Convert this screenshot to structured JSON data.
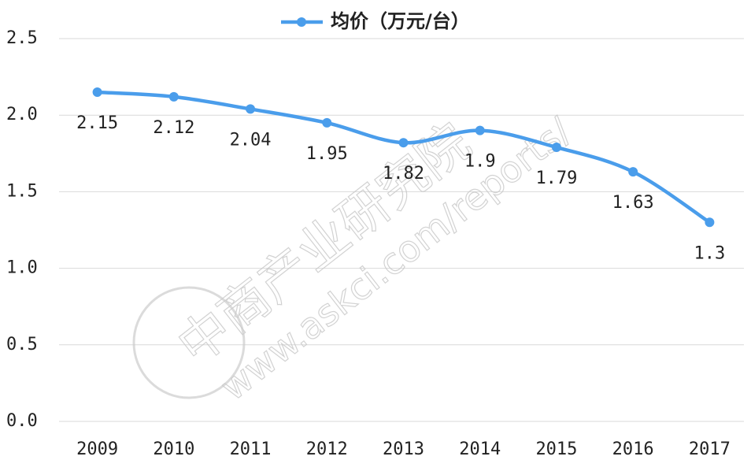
{
  "chart_data": {
    "type": "line",
    "categories": [
      "2009",
      "2010",
      "2011",
      "2012",
      "2013",
      "2014",
      "2015",
      "2016",
      "2017"
    ],
    "series": [
      {
        "name": "均价（万元/台）",
        "color": "#4a9deb",
        "values": [
          2.15,
          2.12,
          2.04,
          1.95,
          1.82,
          1.9,
          1.79,
          1.63,
          1.3
        ]
      }
    ],
    "ylim": [
      0,
      2.5
    ],
    "yticks": [
      {
        "value": 0,
        "label": "0.0"
      },
      0.5,
      {
        "value": 1,
        "label": "1.0"
      },
      1.5,
      {
        "value": 2,
        "label": "2.0"
      },
      2.5
    ],
    "grid": true,
    "legend": "top",
    "watermark": [
      "中商产业研究院",
      "www.askci.com/reports/"
    ]
  }
}
